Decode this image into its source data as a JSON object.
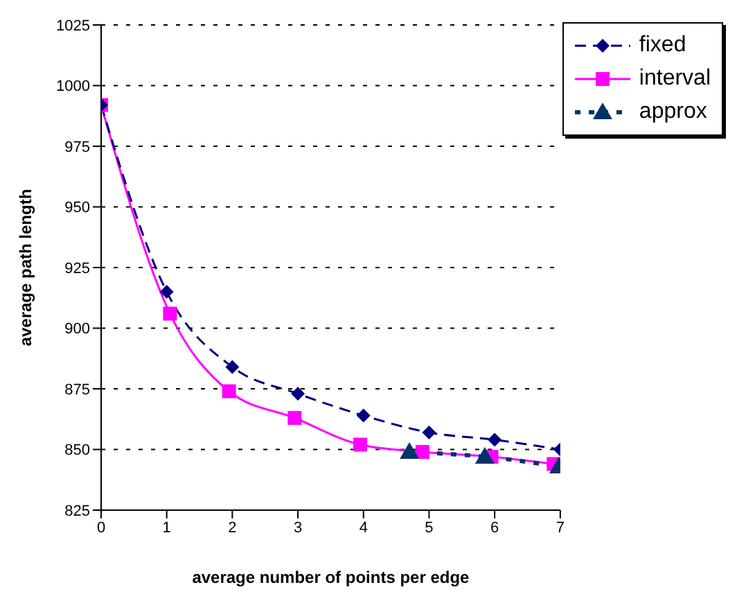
{
  "chart_data": {
    "type": "line",
    "xlabel": "average number of points per edge",
    "ylabel": "average path length",
    "xlim": [
      0,
      7
    ],
    "xticks": [
      0,
      1,
      2,
      3,
      4,
      5,
      6,
      7
    ],
    "ylim": [
      825,
      1025
    ],
    "yticks": [
      825,
      850,
      875,
      900,
      925,
      950,
      975,
      1000,
      1025
    ],
    "grid": "y",
    "legend": "top right",
    "series": [
      {
        "name": "fixed",
        "color": "#000080",
        "marker": "diamond",
        "line_style": "dashed",
        "x": [
          0,
          1,
          2,
          3,
          4,
          5,
          6,
          7
        ],
        "values": [
          992,
          915,
          884,
          873,
          864,
          857,
          854,
          850
        ]
      },
      {
        "name": "interval",
        "color": "#ff00ff",
        "marker": "square",
        "line_style": "solid",
        "x": [
          0,
          1.05,
          1.95,
          2.95,
          3.95,
          4.9,
          5.95,
          6.9
        ],
        "values": [
          992,
          906,
          874,
          863,
          852,
          849,
          847,
          844
        ]
      },
      {
        "name": "approx",
        "color": "#003366",
        "marker": "triangle",
        "line_style": "dotted",
        "x": [
          4.7,
          5.85,
          6.98
        ],
        "values": [
          849,
          847,
          843
        ]
      }
    ]
  }
}
